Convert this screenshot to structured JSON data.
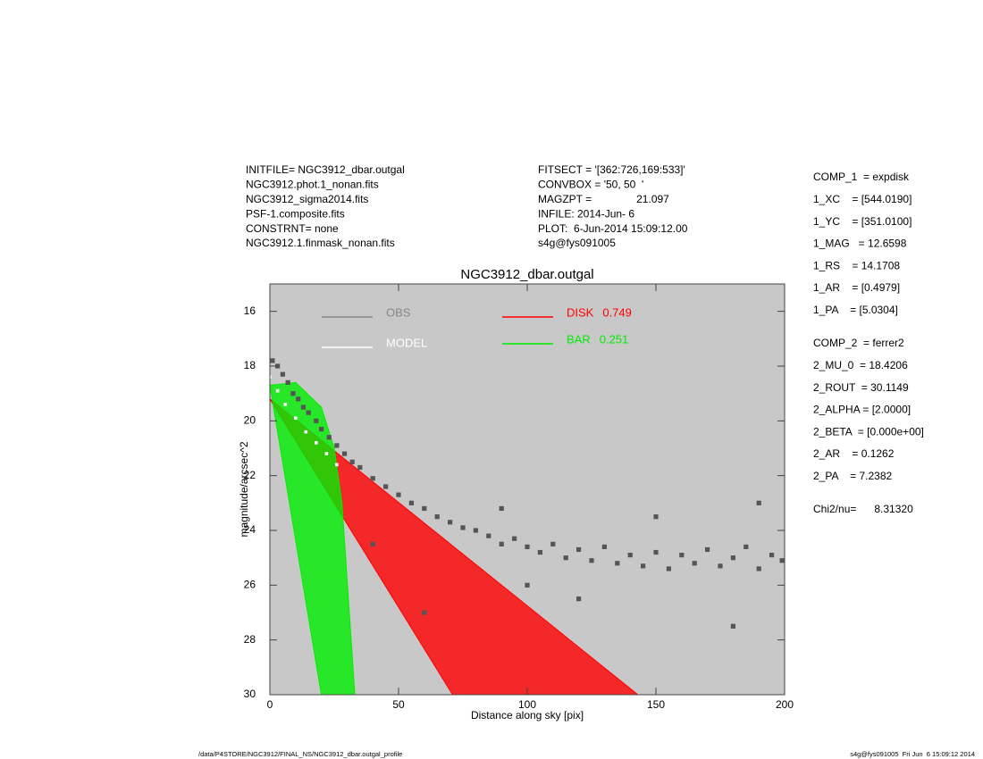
{
  "header": {
    "left": [
      "INITFILE= NGC3912_dbar.outgal",
      "NGC3912.phot.1_nonan.fits",
      "NGC3912_sigma2014.fits",
      "PSF-1.composite.fits",
      "CONSTRNT= none",
      "NGC3912.1.finmask_nonan.fits"
    ],
    "middle": [
      "FITSECT = '[362:726,169:533]'",
      "CONVBOX = '50, 50  '",
      "MAGZPT =               21.097",
      "INFILE: 2014-Jun- 6",
      "PLOT:  6-Jun-2014 15:09:12.00",
      "s4g@fys091005"
    ]
  },
  "params": {
    "group1": [
      "COMP_1  = expdisk",
      "1_XC    = [544.0190]",
      "1_YC    = [351.0100]",
      "1_MAG   = 12.6598",
      "1_RS    = 14.1708",
      "1_AR    = [0.4979]",
      "1_PA    = [5.0304]"
    ],
    "group2": [
      "COMP_2  = ferrer2",
      "2_MU_0  = 18.4206",
      "2_ROUT  = 30.1149",
      "2_ALPHA = [2.0000]",
      "2_BETA  = [0.000e+00]",
      "2_AR    = 0.1262",
      "2_PA    = 7.2382"
    ],
    "chi": "Chi2/nu=      8.31320"
  },
  "footer": {
    "left": "/data/P4STORE/NGC3912/FINAL_NS/NGC3912_dbar.outgal_profile",
    "right": "s4g@fys091005  Fri Jun  6 15:09:12 2014"
  },
  "chart_data": {
    "type": "scatter",
    "title": "NGC3912_dbar.outgal",
    "x_label": "Distance along sky [pix]",
    "y_label": "magnitude/arcsec^2",
    "xlim": [
      0,
      200
    ],
    "ylim": [
      15,
      30
    ],
    "y_reversed": true,
    "xticks": [
      0,
      50,
      100,
      150,
      200
    ],
    "yticks": [
      16,
      18,
      20,
      22,
      24,
      26,
      28,
      30
    ],
    "background": "#c8c8c8",
    "series": [
      {
        "name": "OBS",
        "color": "#555555",
        "mark": "points",
        "x": [
          1,
          3,
          5,
          7,
          9,
          11,
          13,
          15,
          18,
          20,
          23,
          26,
          29,
          32,
          35,
          40,
          45,
          50,
          55,
          60,
          65,
          70,
          75,
          80,
          85,
          90,
          95,
          100,
          105,
          110,
          115,
          120,
          125,
          130,
          135,
          140,
          145,
          150,
          155,
          160,
          165,
          170,
          175,
          180,
          185,
          190,
          195,
          199,
          60,
          120,
          180,
          40,
          100,
          150,
          190,
          90
        ],
        "values": [
          17.8,
          18.0,
          18.3,
          18.6,
          19.0,
          19.2,
          19.5,
          19.7,
          20.0,
          20.3,
          20.6,
          20.9,
          21.2,
          21.5,
          21.7,
          22.1,
          22.4,
          22.7,
          23.0,
          23.2,
          23.5,
          23.7,
          23.9,
          24.0,
          24.2,
          24.5,
          24.3,
          24.6,
          24.8,
          24.5,
          25.0,
          24.7,
          25.1,
          24.6,
          25.2,
          24.9,
          25.3,
          24.8,
          25.4,
          24.9,
          25.2,
          24.7,
          25.3,
          25.0,
          24.6,
          25.4,
          24.9,
          25.1,
          27.0,
          26.5,
          27.5,
          24.5,
          26.0,
          23.5,
          23.0,
          23.2
        ]
      },
      {
        "name": "MODEL",
        "color": "#ffffff",
        "mark": "points",
        "x": [
          0,
          3,
          6,
          10,
          14,
          18,
          22,
          26
        ],
        "values": [
          18.4,
          18.9,
          19.4,
          19.9,
          20.4,
          20.8,
          21.2,
          21.6
        ]
      },
      {
        "name": "DISK",
        "fraction": 0.749,
        "color": "#ff0000",
        "mark": "area",
        "x": [
          0,
          71,
          143
        ],
        "values": [
          19.2,
          30,
          30
        ]
      },
      {
        "name": "BAR",
        "fraction": 0.251,
        "color": "#00ee00",
        "mark": "area",
        "x": [
          0,
          10,
          20,
          25,
          28,
          33,
          20
        ],
        "values": [
          18.7,
          18.6,
          19.5,
          21,
          23,
          30,
          30
        ]
      }
    ]
  }
}
